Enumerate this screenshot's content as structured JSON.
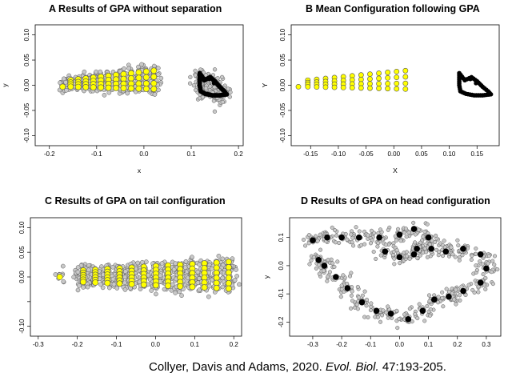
{
  "figure": {
    "citation_prefix": "Collyer, Davis and Adams, 2020. ",
    "citation_journal": "Evol. Biol.",
    "citation_suffix": " 47:193-205."
  },
  "colors": {
    "landmark_fill": "#ffff00",
    "landmark_stroke": "#555555",
    "cloud_fill": "#c8c8c8",
    "cloud_stroke": "#5a5a5a",
    "head_mean": "#000000"
  },
  "chart_data": [
    {
      "id": "A",
      "type": "scatter",
      "title": "A  Results of GPA without separation",
      "xlabel": "x",
      "ylabel": "y",
      "xlim": [
        -0.23,
        0.21
      ],
      "ylim": [
        -0.12,
        0.12
      ],
      "xticks": [
        "-0.2",
        "-0.1",
        "0.0",
        "0.1",
        "0.2"
      ],
      "xtick_values": [
        -0.2,
        -0.1,
        0.0,
        0.1,
        0.2
      ],
      "yticks": [
        "-0.10",
        "-0.05",
        "0.00",
        "0.05",
        "0.10"
      ],
      "ytick_values": [
        -0.1,
        -0.05,
        0.0,
        0.05,
        0.1
      ],
      "series": [
        {
          "role": "tail-procrustes-cloud",
          "style": "cloud"
        },
        {
          "role": "tail-mean",
          "style": "yellow"
        },
        {
          "role": "head-mean",
          "style": "black"
        }
      ]
    },
    {
      "id": "B",
      "type": "scatter",
      "title": "B  Mean Configuration following GPA",
      "xlabel": "X",
      "ylabel": "Y",
      "xlim": [
        -0.185,
        0.19
      ],
      "ylim": [
        -0.12,
        0.12
      ],
      "xticks": [
        "-0.15",
        "-0.10",
        "-0.05",
        "0.00",
        "0.05",
        "0.10",
        "0.15"
      ],
      "xtick_values": [
        -0.15,
        -0.1,
        -0.05,
        0.0,
        0.05,
        0.1,
        0.15
      ],
      "yticks": [
        "-0.10",
        "-0.05",
        "0.00",
        "0.05",
        "0.10"
      ],
      "ytick_values": [
        -0.1,
        -0.05,
        0.0,
        0.05,
        0.1
      ],
      "series": [
        {
          "role": "tail-mean",
          "style": "yellow"
        },
        {
          "role": "head-mean",
          "style": "black"
        }
      ]
    },
    {
      "id": "C",
      "type": "scatter",
      "title": "C  Results of GPA on tail configuration",
      "xlabel": "",
      "ylabel": "",
      "xlim": [
        -0.32,
        0.22
      ],
      "ylim": [
        -0.12,
        0.12
      ],
      "xticks": [
        "-0.3",
        "-0.2",
        "-0.1",
        "0.0",
        "0.1",
        "0.2"
      ],
      "xtick_values": [
        -0.3,
        -0.2,
        -0.1,
        0.0,
        0.1,
        0.2
      ],
      "yticks": [
        "-0.10",
        "-0.05",
        "0.00",
        "0.05",
        "0.10"
      ],
      "yticks_shown": [
        "-0.10",
        "0.00",
        "0.05",
        "0.10"
      ],
      "ytick_values": [
        -0.1,
        -0.05,
        0.0,
        0.05,
        0.1
      ],
      "series": [
        {
          "role": "tail-procrustes-cloud",
          "style": "cloud"
        },
        {
          "role": "tail-mean",
          "style": "yellow"
        }
      ]
    },
    {
      "id": "D",
      "type": "scatter",
      "title": "D  Results of GPA on head configuration",
      "xlabel": "",
      "ylabel": "y",
      "xlim": [
        -0.38,
        0.35
      ],
      "ylim": [
        -0.25,
        0.17
      ],
      "xticks": [
        "-0.3",
        "-0.2",
        "-0.1",
        "0.0",
        "0.1",
        "0.2",
        "0.3"
      ],
      "xtick_values": [
        -0.3,
        -0.2,
        -0.1,
        0.0,
        0.1,
        0.2,
        0.3
      ],
      "yticks": [
        "-0.2",
        "-0.1",
        "0.0",
        "0.1"
      ],
      "ytick_values": [
        -0.2,
        -0.1,
        0.0,
        0.1
      ],
      "series": [
        {
          "role": "head-procrustes-cloud",
          "style": "cloud"
        },
        {
          "role": "head-mean",
          "style": "black"
        }
      ]
    }
  ]
}
